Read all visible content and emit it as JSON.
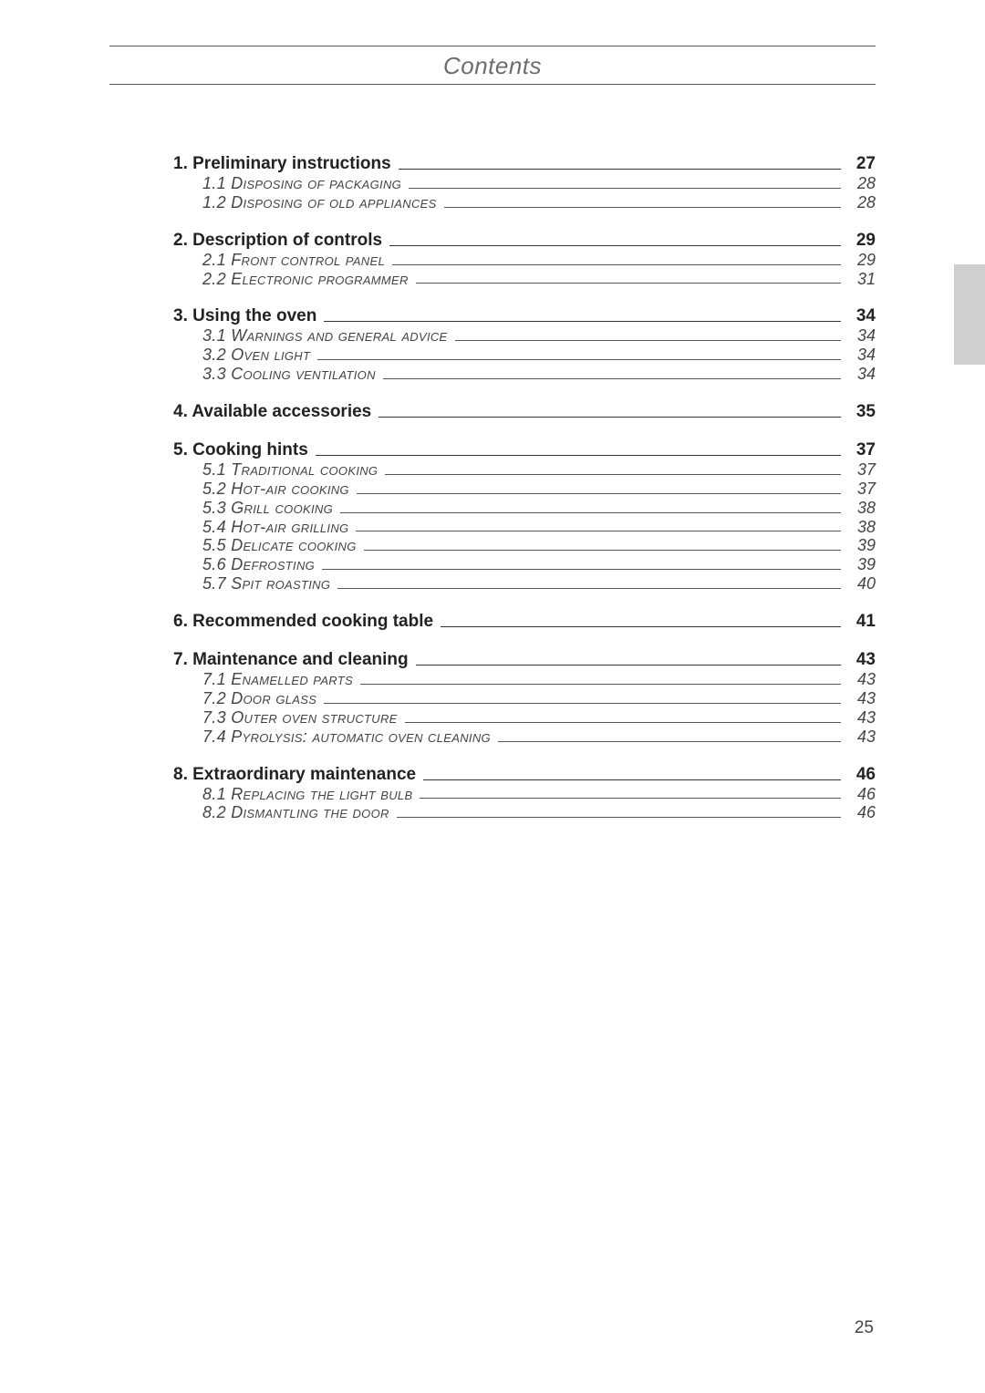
{
  "header": {
    "title": "Contents"
  },
  "page_number": "25",
  "colors": {
    "header_text": "#6d6d6d",
    "rule": "#555555",
    "main_text": "#222222",
    "sub_text": "#444444",
    "side_tab": "#cfcfcf",
    "background": "#ffffff"
  },
  "toc": {
    "sections": [
      {
        "title": "1. Preliminary instructions",
        "page": "27",
        "items": [
          {
            "label": "1.1 Disposing of packaging",
            "page": "28"
          },
          {
            "label": "1.2 Disposing of old appliances",
            "page": "28"
          }
        ]
      },
      {
        "title": "2. Description of controls",
        "page": "29",
        "items": [
          {
            "label": "2.1 Front control panel",
            "page": "29"
          },
          {
            "label": "2.2 Electronic programmer",
            "page": "31"
          }
        ]
      },
      {
        "title": "3. Using the oven",
        "page": "34",
        "items": [
          {
            "label": "3.1 Warnings and general advice",
            "page": "34"
          },
          {
            "label": "3.2 Oven light",
            "page": "34"
          },
          {
            "label": "3.3 Cooling ventilation",
            "page": "34"
          }
        ]
      },
      {
        "title": "4. Available accessories",
        "page": "35",
        "items": []
      },
      {
        "title": "5. Cooking hints",
        "page": "37",
        "items": [
          {
            "label": "5.1 Traditional cooking",
            "page": "37"
          },
          {
            "label": "5.2 Hot-air cooking",
            "page": "37"
          },
          {
            "label": "5.3 Grill cooking",
            "page": "38"
          },
          {
            "label": "5.4 Hot-air grilling",
            "page": "38"
          },
          {
            "label": "5.5 Delicate cooking",
            "page": "39"
          },
          {
            "label": "5.6 Defrosting",
            "page": "39"
          },
          {
            "label": "5.7 Spit roasting",
            "page": "40"
          }
        ]
      },
      {
        "title": "6. Recommended cooking table",
        "page": "41",
        "items": []
      },
      {
        "title": "7. Maintenance and cleaning",
        "page": "43",
        "items": [
          {
            "label": "7.1 Enamelled parts",
            "page": "43"
          },
          {
            "label": "7.2 Door glass",
            "page": "43"
          },
          {
            "label": "7.3 Outer oven structure",
            "page": "43"
          },
          {
            "label": "7.4 Pyrolysis: automatic oven cleaning",
            "page": "43"
          }
        ]
      },
      {
        "title": "8. Extraordinary maintenance",
        "page": "46",
        "items": [
          {
            "label": "8.1 Replacing the light bulb",
            "page": "46"
          },
          {
            "label": "8.2 Dismantling the door",
            "page": "46"
          }
        ]
      }
    ]
  }
}
